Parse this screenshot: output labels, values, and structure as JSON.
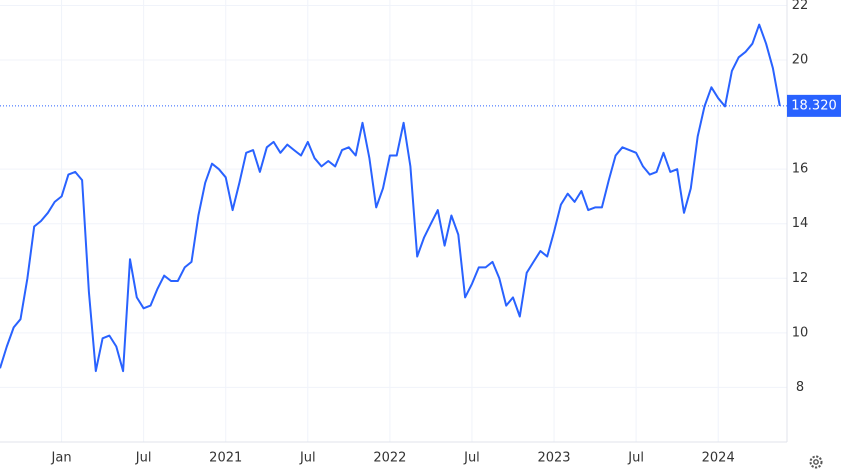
{
  "chart_data": {
    "type": "line",
    "categories": [
      null,
      null,
      null,
      null,
      null,
      null,
      null,
      null,
      null,
      "Jan",
      null,
      null,
      null,
      null,
      null,
      null,
      null,
      null,
      null,
      null,
      null,
      "Jul",
      null,
      null,
      null,
      null,
      null,
      null,
      null,
      null,
      null,
      null,
      null,
      "2021",
      null,
      null,
      null,
      null,
      null,
      null,
      null,
      null,
      null,
      null,
      null,
      "Jul",
      null,
      null,
      null,
      null,
      null,
      null,
      null,
      null,
      null,
      null,
      null,
      "2022",
      null,
      null,
      null,
      null,
      null,
      null,
      null,
      null,
      null,
      null,
      null,
      "Jul",
      null,
      null,
      null,
      null,
      null,
      null,
      null,
      null,
      null,
      null,
      null,
      "2023",
      null,
      null,
      null,
      null,
      null,
      null,
      null,
      null,
      null,
      null,
      null,
      "Jul",
      null,
      null,
      null,
      null,
      null,
      null,
      null,
      null,
      null,
      null,
      null,
      "2024",
      null,
      null,
      null,
      null,
      null,
      null,
      null,
      null,
      null
    ],
    "series": [
      {
        "color": "#2962ff",
        "values": [
          8.7,
          9.5,
          10.2,
          10.5,
          12.0,
          13.9,
          14.1,
          14.4,
          14.8,
          15.0,
          15.8,
          15.9,
          15.6,
          11.5,
          8.6,
          9.8,
          9.9,
          9.5,
          8.6,
          12.7,
          11.3,
          10.9,
          11.0,
          11.6,
          12.1,
          11.9,
          11.9,
          12.4,
          12.6,
          14.3,
          15.5,
          16.2,
          16.0,
          15.7,
          14.5,
          15.5,
          16.6,
          16.7,
          15.9,
          16.8,
          17.0,
          16.6,
          16.9,
          16.7,
          16.5,
          17.0,
          16.4,
          16.1,
          16.3,
          16.1,
          16.7,
          16.8,
          16.5,
          17.7,
          16.4,
          14.6,
          15.3,
          16.5,
          16.5,
          17.7,
          16.1,
          12.8,
          13.5,
          14.0,
          14.5,
          13.2,
          14.3,
          13.6,
          11.3,
          11.8,
          12.4,
          12.4,
          12.6,
          12.0,
          11.0,
          11.3,
          10.6,
          12.2,
          12.6,
          13.0,
          12.8,
          13.7,
          14.7,
          15.1,
          14.8,
          15.2,
          14.5,
          14.6,
          14.6,
          15.6,
          16.5,
          16.8,
          16.7,
          16.6,
          16.1,
          15.8,
          15.9,
          16.6,
          15.9,
          16.0,
          14.4,
          15.3,
          17.2,
          18.3,
          19.0,
          18.6,
          18.3,
          19.6,
          20.1,
          20.3,
          20.6,
          21.3,
          20.6,
          19.7,
          18.32
        ]
      }
    ],
    "current": {
      "value": 18.32,
      "label": "18.320"
    },
    "ylim": [
      6,
      22.2
    ],
    "yticks": [
      8,
      10,
      12,
      14,
      16,
      20,
      22
    ],
    "grid": true
  }
}
